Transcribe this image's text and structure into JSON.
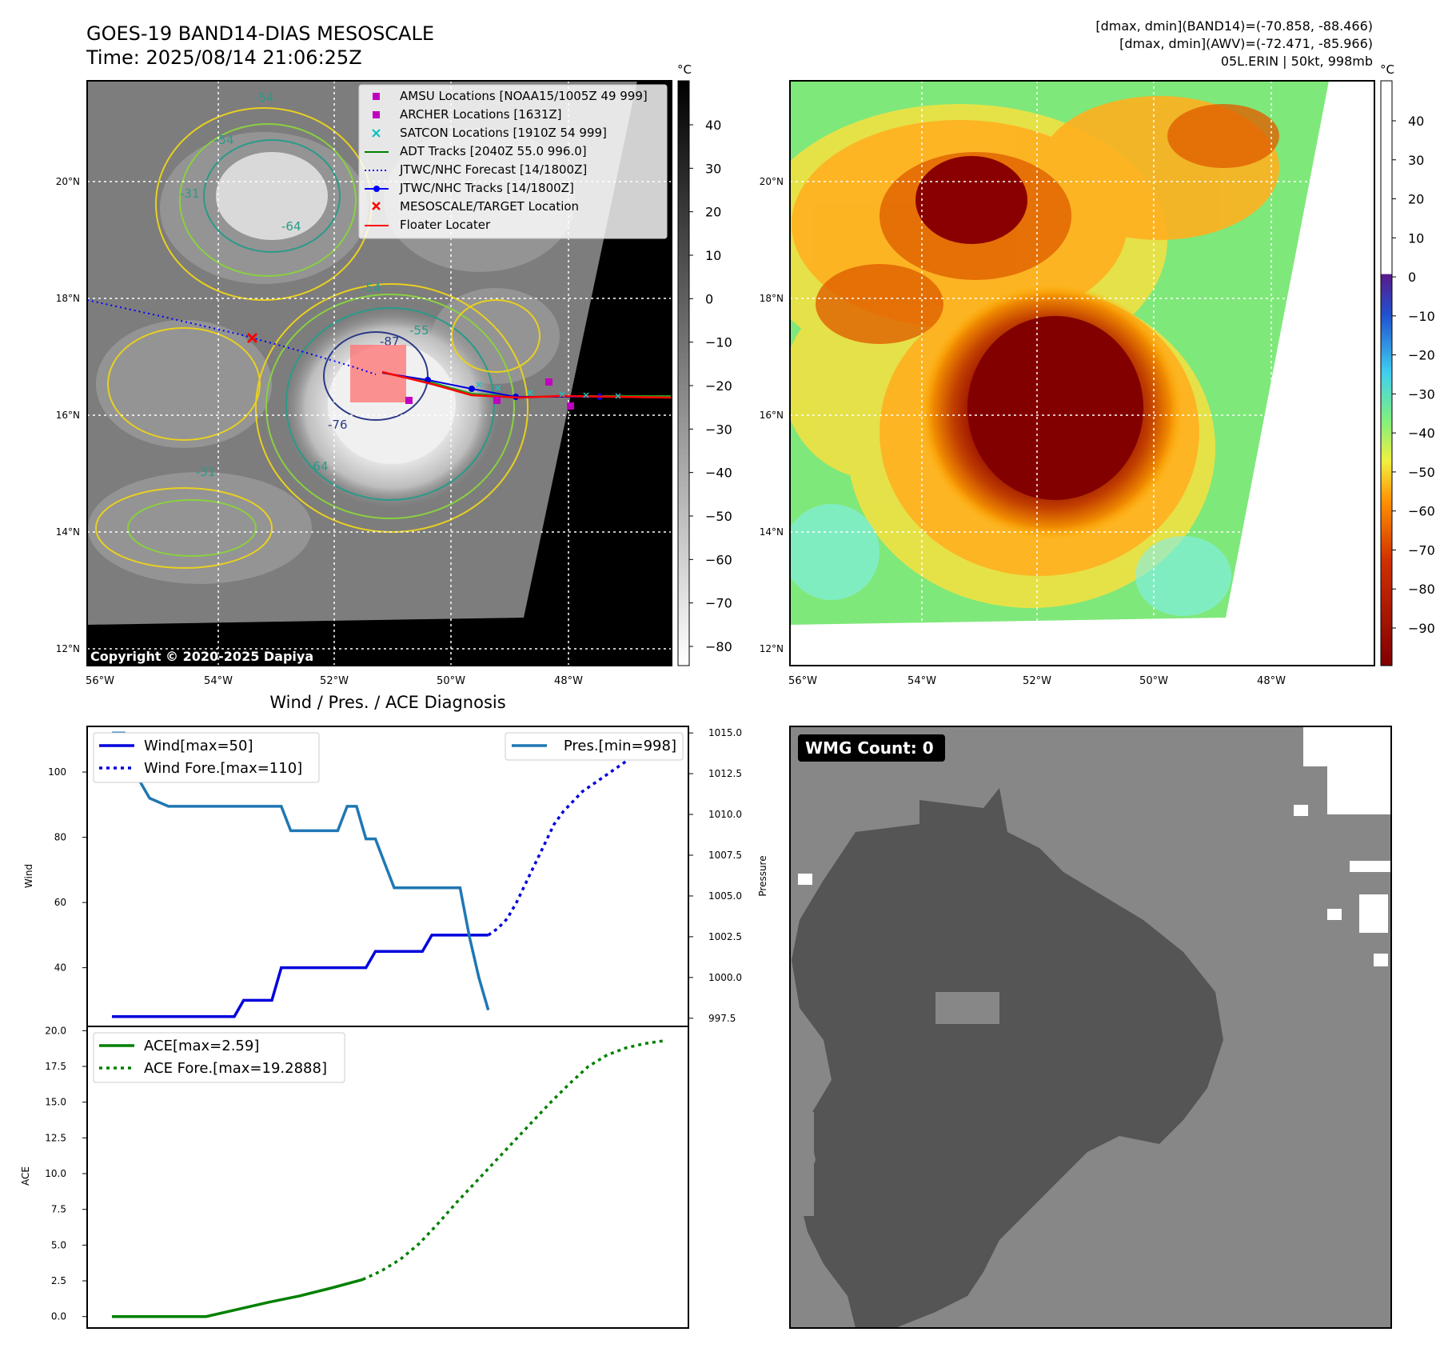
{
  "header": {
    "title_line1": "GOES-19 BAND14-DIAS MESOSCALE",
    "title_line2": "Time: 2025/08/14 21:06:25Z",
    "info_line1": "[dmax, dmin](BAND14)=(-70.858, -88.466)",
    "info_line2": "[dmax, dmin](AWV)=(-72.471, -85.966)",
    "info_line3": "05L.ERIN | 50kt, 998mb"
  },
  "map": {
    "lat_ticks": [
      "20°N",
      "18°N",
      "16°N",
      "14°N",
      "12°N"
    ],
    "lon_ticks": [
      "56°W",
      "54°W",
      "52°W",
      "50°W",
      "48°W"
    ],
    "copyright": "Copyright © 2020-2025 Dapiya",
    "legend": [
      {
        "label": "AMSU Locations [NOAA15/1005Z 49 999]",
        "color": "#c000c0",
        "marker": "square"
      },
      {
        "label": "ARCHER Locations [1631Z]",
        "color": "#c000c0",
        "marker": "square"
      },
      {
        "label": "SATCON Locations [1910Z 54 999]",
        "color": "#00c0c0",
        "marker": "x"
      },
      {
        "label": "ADT Tracks [2040Z 55.0 996.0]",
        "color": "#008000",
        "marker": "line"
      },
      {
        "label": "JTWC/NHC Forecast [14/1800Z]",
        "color": "#0000ff",
        "marker": "dotted"
      },
      {
        "label": "JTWC/NHC Tracks [14/1800Z]",
        "color": "#0000ff",
        "marker": "line-dot"
      },
      {
        "label": "MESOSCALE/TARGET Location",
        "color": "#ff0000",
        "marker": "x"
      },
      {
        "label": "Floater Locater",
        "color": "#ff0000",
        "marker": "line"
      }
    ],
    "contour_labels": [
      "-54",
      "-54",
      "-64",
      "-64",
      "-31",
      "-31",
      "-76",
      "-87",
      "-55",
      "-54"
    ],
    "colorbar_gray": {
      "unit": "°C",
      "ticks": [
        "40",
        "30",
        "20",
        "10",
        "0",
        "−10",
        "−20",
        "−30",
        "−40",
        "−50",
        "−60",
        "−70",
        "−80"
      ]
    },
    "colorbar_awv": {
      "unit": "°C",
      "ticks": [
        "40",
        "30",
        "20",
        "10",
        "0",
        "−10",
        "−20",
        "−30",
        "−40",
        "−50",
        "−60",
        "−70",
        "−80",
        "−90"
      ]
    }
  },
  "chart_data": [
    {
      "type": "line",
      "title": "Wind / Pres. / ACE Diagnosis",
      "ylabel": "Wind",
      "ylabel_right": "Pressure",
      "yticks": [
        "100",
        "80",
        "60",
        "40"
      ],
      "yticks_right": [
        "1015.0",
        "1012.5",
        "1010.0",
        "1007.5",
        "1005.0",
        "1002.5",
        "1000.0",
        "997.5"
      ],
      "ylim": [
        22,
        114
      ],
      "ylim_right": [
        997,
        1015.4
      ],
      "legend_left": [
        "Wind[max=50]",
        "Wind Fore.[max=110]"
      ],
      "legend_right": [
        "Pres.[min=998]"
      ],
      "x": [
        0,
        1,
        2,
        3,
        4,
        5,
        6,
        7,
        8,
        9,
        10,
        11,
        12,
        13,
        14,
        15,
        16,
        17,
        18,
        19,
        20,
        21,
        22,
        23,
        24,
        25,
        26,
        27,
        28,
        29,
        30,
        31,
        32,
        33,
        34,
        35,
        36,
        37,
        38,
        39,
        40
      ],
      "series": [
        {
          "name": "Wind[max=50]",
          "color": "#0000dd",
          "style": "solid",
          "x": [
            0,
            2,
            4,
            6,
            8,
            9,
            10,
            11,
            12,
            13,
            14,
            15,
            16,
            17,
            18,
            19,
            20,
            21,
            22,
            23,
            24,
            25,
            26,
            27,
            28,
            29,
            30,
            31,
            32,
            33,
            34,
            35,
            36,
            37,
            38,
            39,
            40
          ],
          "values": [
            25,
            25,
            25,
            25,
            25,
            25,
            25,
            25,
            25,
            25,
            30,
            30,
            30,
            30,
            40,
            40,
            40,
            40,
            40,
            40,
            40,
            40,
            40,
            40,
            45,
            45,
            45,
            45,
            45,
            45,
            50,
            50,
            50,
            50,
            50,
            50,
            50
          ]
        },
        {
          "name": "Wind Fore.[max=110]",
          "color": "#0000dd",
          "style": "dotted",
          "x": [
            40,
            41,
            42,
            43,
            44,
            45,
            46,
            47,
            48,
            49,
            50,
            52,
            54,
            55,
            56,
            57,
            58,
            59,
            60
          ],
          "values": [
            50,
            52,
            55,
            60,
            66,
            72,
            78,
            84,
            88,
            91,
            94,
            98,
            102,
            104,
            105,
            105,
            106,
            106,
            106
          ]
        },
        {
          "name": "Pres.[min=998]",
          "color": "#1f77b4",
          "style": "solid",
          "axis": "right",
          "x": [
            0,
            1,
            1.3,
            2.5,
            4,
            6,
            8,
            10,
            12,
            13,
            14,
            15,
            16,
            16.5,
            17,
            18,
            19,
            20,
            21,
            22,
            23,
            24,
            25,
            26,
            27,
            28,
            29,
            30,
            31,
            32,
            33,
            34,
            35,
            36,
            37,
            38,
            39,
            40
          ],
          "values": [
            1015,
            1015,
            1015,
            1012.5,
            1011,
            1010.5,
            1010.5,
            1010.5,
            1010.5,
            1010.5,
            1010.5,
            1010.5,
            1010.5,
            1010.5,
            1010.5,
            1010.5,
            1009,
            1009,
            1009,
            1009,
            1009,
            1009,
            1010.5,
            1010.5,
            1008.5,
            1008.5,
            1007,
            1005.5,
            1005.5,
            1005.5,
            1005.5,
            1005.5,
            1005.5,
            1005.5,
            1005.5,
            1002.5,
            1000,
            998
          ]
        }
      ]
    },
    {
      "type": "line",
      "ylabel": "ACE",
      "yticks": [
        "20.0",
        "17.5",
        "15.0",
        "12.5",
        "10.0",
        "7.5",
        "5.0",
        "2.5",
        "0.0"
      ],
      "ylim": [
        -0.8,
        20.3
      ],
      "legend": [
        "ACE[max=2.59]",
        "ACE Fore.[max=19.2888]"
      ],
      "series": [
        {
          "name": "ACE[max=2.59]",
          "color": "#008000",
          "style": "solid",
          "x": [
            0,
            5,
            10,
            15,
            20,
            25,
            30,
            35,
            40
          ],
          "values": [
            0,
            0,
            0,
            0,
            0.5,
            1.0,
            1.45,
            2.0,
            2.59
          ]
        },
        {
          "name": "ACE Fore.[max=19.2888]",
          "color": "#008000",
          "style": "dotted",
          "x": [
            40,
            43,
            46,
            49,
            52,
            55,
            58,
            61,
            64,
            67,
            70,
            73,
            76,
            79,
            82,
            85,
            88
          ],
          "values": [
            2.59,
            3.2,
            4.0,
            5.1,
            6.5,
            8.0,
            9.4,
            10.8,
            12.2,
            13.6,
            15.0,
            16.3,
            17.5,
            18.3,
            18.8,
            19.1,
            19.29
          ]
        }
      ]
    }
  ],
  "wmg": {
    "label": "WMG Count: 0"
  }
}
